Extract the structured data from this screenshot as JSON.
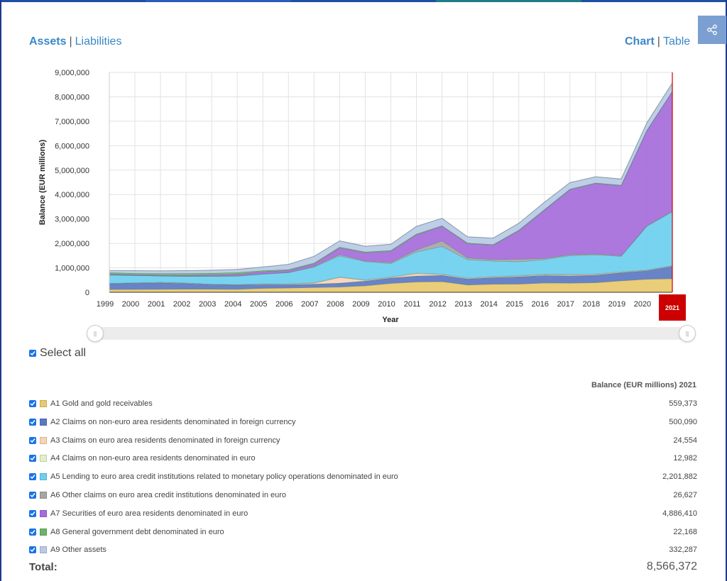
{
  "top_bar_colors": [
    "#1f4fa3",
    "#2a5bbd",
    "#1f4fa3",
    "#1c7d86",
    "#1f4fa3"
  ],
  "nav": {
    "assets": "Assets",
    "liabilities": "Liabilities",
    "chart": "Chart",
    "table": "Table",
    "separator": "|"
  },
  "share_icon": "share-icon",
  "select_all_label": "Select all",
  "column_header": "Balance (EUR millions) 2021",
  "chart_data": {
    "type": "area",
    "stacked": true,
    "xlabel": "Year",
    "ylabel": "Balance (EUR millions)",
    "ylim": [
      0,
      9000000
    ],
    "yticks": [
      0,
      1000000,
      2000000,
      3000000,
      4000000,
      5000000,
      6000000,
      7000000,
      8000000,
      9000000
    ],
    "ytick_labels": [
      "0",
      "1,000,000",
      "2,000,000",
      "3,000,000",
      "4,000,000",
      "5,000,000",
      "6,000,000",
      "7,000,000",
      "8,000,000",
      "9,000,000"
    ],
    "x": [
      "1999",
      "2000",
      "2001",
      "2002",
      "2003",
      "2004",
      "2005",
      "2006",
      "2007",
      "2008",
      "2009",
      "2010",
      "2011",
      "2012",
      "2013",
      "2014",
      "2015",
      "2016",
      "2017",
      "2018",
      "2019",
      "2020",
      "2021"
    ],
    "highlight_year": "2021",
    "highlight_color": "#cc0000",
    "grid": true,
    "series": [
      {
        "id": "A1",
        "name": "A1 Gold and gold receivables",
        "color": "#e8c96d",
        "values": [
          117000,
          119000,
          126000,
          131000,
          130000,
          125000,
          163000,
          176000,
          201000,
          218000,
          267000,
          367000,
          423000,
          438000,
          303000,
          334000,
          338000,
          382000,
          376000,
          395000,
          470000,
          536000,
          559373
        ]
      },
      {
        "id": "A2",
        "name": "A2 Claims on non-euro area residents denominated in foreign currency",
        "color": "#5b78c2",
        "values": [
          230000,
          250000,
          260000,
          230000,
          180000,
          170000,
          150000,
          140000,
          135000,
          160000,
          195000,
          220000,
          245000,
          260000,
          240000,
          270000,
          300000,
          310000,
          300000,
          310000,
          330000,
          340000,
          500090
        ]
      },
      {
        "id": "A3",
        "name": "A3 Claims on euro area residents denominated in foreign currency",
        "color": "#f5d5b5",
        "values": [
          15000,
          16000,
          20000,
          18000,
          18000,
          18000,
          22000,
          26000,
          40000,
          235000,
          32000,
          27000,
          97000,
          32000,
          23000,
          27000,
          32000,
          31000,
          40000,
          31000,
          23000,
          24000,
          24554
        ]
      },
      {
        "id": "A4",
        "name": "A4 Claims on non-euro area residents denominated in euro",
        "color": "#e2f0c9",
        "values": [
          9000,
          4000,
          5000,
          4000,
          7000,
          7000,
          10000,
          12000,
          18000,
          18000,
          16000,
          22000,
          25000,
          19000,
          21000,
          20000,
          20000,
          19000,
          17000,
          20000,
          21000,
          12000,
          12982
        ]
      },
      {
        "id": "A5",
        "name": "A5 Lending to euro area credit institutions related to monetary policy operations denominated in euro",
        "color": "#6ccfef",
        "values": [
          335000,
          300000,
          260000,
          270000,
          320000,
          345000,
          405000,
          450000,
          640000,
          860000,
          750000,
          540000,
          863000,
          1130000,
          750000,
          630000,
          560000,
          600000,
          770000,
          780000,
          630000,
          1790000,
          2201882
        ]
      },
      {
        "id": "A6",
        "name": "A6 Other claims on euro area credit institutions denominated in euro",
        "color": "#a6a6a6",
        "values": [
          15000,
          5000,
          1000,
          10000,
          5000,
          5000,
          4000,
          11000,
          30000,
          56000,
          28000,
          45000,
          80000,
          230000,
          75000,
          60000,
          110000,
          50000,
          40000,
          40000,
          30000,
          25000,
          26627
        ]
      },
      {
        "id": "A7",
        "name": "A7 Securities of euro area residents denominated in euro",
        "color": "#a56cdb",
        "values": [
          25000,
          28000,
          30000,
          40000,
          55000,
          70000,
          92000,
          78000,
          100000,
          270000,
          330000,
          460000,
          620000,
          590000,
          580000,
          590000,
          1160000,
          1970000,
          2660000,
          2880000,
          2860000,
          3880000,
          4886410
        ]
      },
      {
        "id": "A8",
        "name": "A8 General government debt denominated in euro",
        "color": "#6ab56a",
        "values": [
          60000,
          58000,
          68000,
          68000,
          69000,
          71000,
          41000,
          40000,
          37000,
          37000,
          36000,
          35000,
          34000,
          30000,
          28000,
          27000,
          26000,
          26000,
          25000,
          23000,
          22000,
          23000,
          22168
        ]
      },
      {
        "id": "A9",
        "name": "A9 Other assets",
        "color": "#b9c9e6",
        "values": [
          85000,
          105000,
          110000,
          115000,
          120000,
          125000,
          150000,
          210000,
          270000,
          250000,
          230000,
          250000,
          310000,
          300000,
          250000,
          260000,
          280000,
          300000,
          260000,
          250000,
          250000,
          300000,
          332287
        ]
      }
    ],
    "legend_values": [
      "559,373",
      "500,090",
      "24,554",
      "12,982",
      "2,201,882",
      "26,627",
      "4,886,410",
      "22,168",
      "332,287"
    ]
  },
  "total": {
    "label": "Total:",
    "value": "8,566,372"
  }
}
